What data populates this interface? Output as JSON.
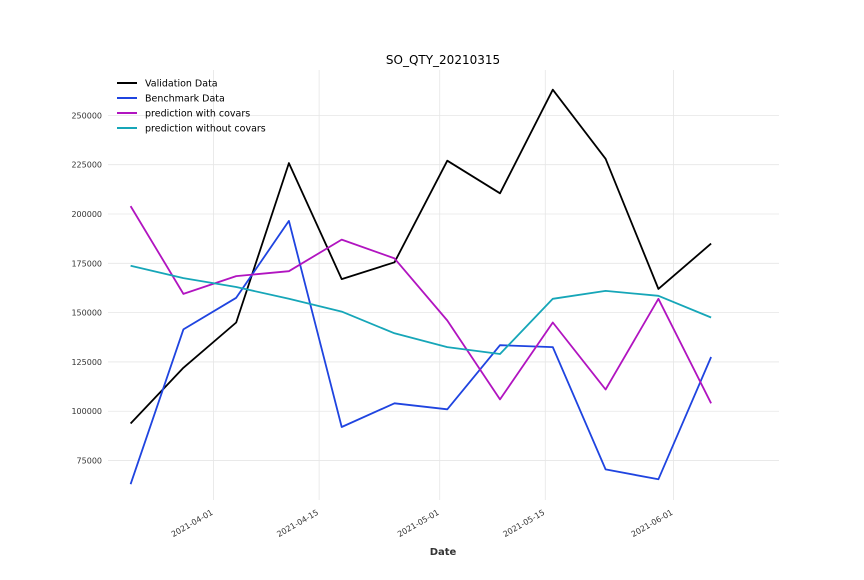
{
  "chart_data": {
    "type": "line",
    "title": "SO_QTY_20210315",
    "xlabel": "Date",
    "ylabel": "",
    "x": [
      "2021-03-21",
      "2021-03-28",
      "2021-04-04",
      "2021-04-11",
      "2021-04-18",
      "2021-04-25",
      "2021-05-02",
      "2021-05-09",
      "2021-05-16",
      "2021-05-23",
      "2021-05-30",
      "2021-06-06"
    ],
    "xlim": [
      "2021-03-18",
      "2021-06-15"
    ],
    "xticks": [
      "2021-04-01",
      "2021-04-15",
      "2021-05-01",
      "2021-05-15",
      "2021-06-01"
    ],
    "ylim": [
      55000,
      273000
    ],
    "yticks": [
      75000,
      100000,
      125000,
      150000,
      175000,
      200000,
      225000,
      250000
    ],
    "grid": true,
    "legend_position": "top-left",
    "series": [
      {
        "name": "Validation Data",
        "color": "#000000",
        "values": [
          93800,
          122000,
          145000,
          225800,
          167000,
          175500,
          227000,
          210500,
          263000,
          228000,
          162000,
          185000
        ]
      },
      {
        "name": "Benchmark Data",
        "color": "#1f44e0",
        "values": [
          63000,
          141500,
          157500,
          196500,
          92000,
          104000,
          101000,
          133500,
          132500,
          70500,
          65500,
          127500
        ]
      },
      {
        "name": "prediction with covars",
        "color": "#b114c0",
        "values": [
          204000,
          159500,
          168500,
          171000,
          187000,
          177500,
          146000,
          106000,
          145000,
          111000,
          157000,
          104000
        ]
      },
      {
        "name": "prediction without covars",
        "color": "#16a6b8",
        "values": [
          173800,
          167500,
          163000,
          157000,
          150500,
          139500,
          132500,
          129000,
          157000,
          161000,
          158500,
          147500
        ]
      }
    ]
  }
}
